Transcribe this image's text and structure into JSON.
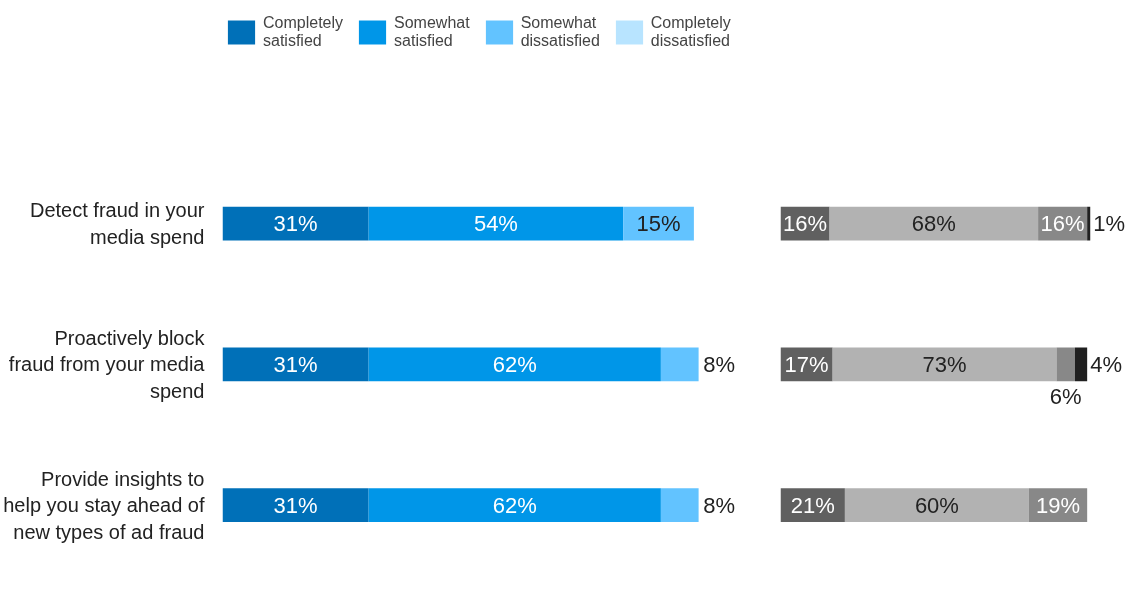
{
  "chart_data": [
    {
      "type": "bar",
      "orientation": "horizontal",
      "stacked": true,
      "legend": "top",
      "grid": false,
      "tick_labels": "y",
      "categories": [
        "Detect fraud in your media spend",
        "Proactively block fraud from your media spend",
        "Provide insights to help you stay ahead of new types of ad fraud"
      ],
      "series": [
        {
          "name": "Completely satisfied",
          "color": "#0070b8",
          "values": [
            31,
            31,
            31
          ],
          "value_labels": [
            "31%",
            "31%",
            "31%"
          ]
        },
        {
          "name": "Somewhat satisfied",
          "color": "#0096e8",
          "values": [
            54,
            62,
            62
          ],
          "value_labels": [
            "54%",
            "62%",
            "62%"
          ]
        },
        {
          "name": "Somewhat dissatisfied",
          "color": "#62c3ff",
          "values": [
            15,
            8,
            8
          ],
          "value_labels": [
            "15%",
            "8%",
            "8%"
          ]
        },
        {
          "name": "Completely dissatisfied",
          "color": "#b8e4ff",
          "values": [
            null,
            null,
            null
          ]
        }
      ]
    },
    {
      "type": "bar",
      "orientation": "horizontal",
      "stacked": true,
      "legend": false,
      "grid": false,
      "tick_labels": false,
      "categories": [
        null,
        null,
        null
      ],
      "series": [
        {
          "color": "#606060",
          "values": [
            16,
            17,
            21
          ],
          "value_labels": [
            "16%",
            "17%",
            "21%"
          ]
        },
        {
          "color": "#b2b2b2",
          "values": [
            68,
            73,
            60
          ],
          "value_labels": [
            "68%",
            "73%",
            "60%"
          ]
        },
        {
          "color": "#888888",
          "values": [
            16,
            6,
            19
          ],
          "value_labels": [
            "16%",
            "6%",
            "19%"
          ]
        },
        {
          "color": "#202020",
          "values": [
            1,
            4,
            null
          ],
          "value_labels": [
            "1%",
            "4%",
            null
          ]
        }
      ]
    }
  ]
}
